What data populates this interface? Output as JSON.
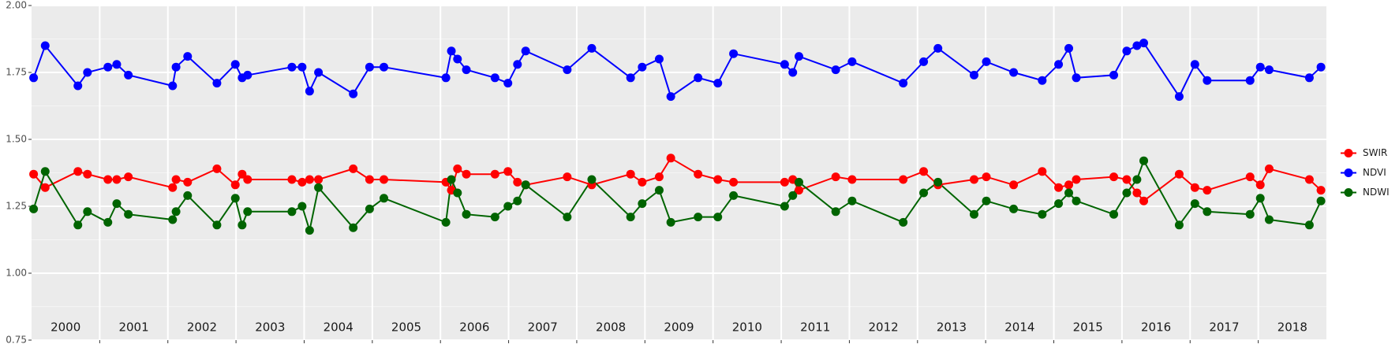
{
  "chart_data": {
    "type": "line",
    "x": [
      2000.03,
      2000.2,
      2000.68,
      2000.82,
      2001.12,
      2001.25,
      2001.42,
      2002.07,
      2002.12,
      2002.29,
      2002.72,
      2002.99,
      2003.09,
      2003.17,
      2003.82,
      2003.97,
      2004.08,
      2004.21,
      2004.72,
      2004.96,
      2005.17,
      2006.08,
      2006.16,
      2006.25,
      2006.38,
      2006.8,
      2006.99,
      2007.13,
      2007.25,
      2007.86,
      2008.22,
      2008.79,
      2008.96,
      2009.21,
      2009.38,
      2009.78,
      2010.07,
      2010.3,
      2011.05,
      2011.17,
      2011.26,
      2011.8,
      2012.04,
      2012.79,
      2013.09,
      2013.3,
      2013.83,
      2014.01,
      2014.41,
      2014.83,
      2015.07,
      2015.22,
      2015.33,
      2015.88,
      2016.07,
      2016.22,
      2016.32,
      2016.84,
      2017.07,
      2017.25,
      2017.88,
      2018.03,
      2018.16,
      2018.75,
      2018.92
    ],
    "series": [
      {
        "name": "SWIR",
        "color": "#ff0000",
        "values": [
          1.37,
          1.32,
          1.38,
          1.37,
          1.35,
          1.35,
          1.36,
          1.32,
          1.35,
          1.34,
          1.39,
          1.33,
          1.37,
          1.35,
          1.35,
          1.34,
          1.35,
          1.35,
          1.39,
          1.35,
          1.35,
          1.34,
          1.31,
          1.39,
          1.37,
          1.37,
          1.38,
          1.34,
          1.33,
          1.36,
          1.33,
          1.37,
          1.34,
          1.36,
          1.43,
          1.37,
          1.35,
          1.34,
          1.34,
          1.35,
          1.31,
          1.36,
          1.35,
          1.35,
          1.38,
          1.33,
          1.35,
          1.36,
          1.33,
          1.38,
          1.32,
          1.33,
          1.35,
          1.36,
          1.35,
          1.3,
          1.27,
          1.37,
          1.32,
          1.31,
          1.36,
          1.33,
          1.39,
          1.35,
          1.31
        ]
      },
      {
        "name": "NDVI",
        "color": "#0000ff",
        "values": [
          1.73,
          1.85,
          1.7,
          1.75,
          1.77,
          1.78,
          1.74,
          1.7,
          1.77,
          1.81,
          1.71,
          1.78,
          1.73,
          1.74,
          1.77,
          1.77,
          1.68,
          1.75,
          1.67,
          1.77,
          1.77,
          1.73,
          1.83,
          1.8,
          1.76,
          1.73,
          1.71,
          1.78,
          1.83,
          1.76,
          1.84,
          1.73,
          1.77,
          1.8,
          1.66,
          1.73,
          1.71,
          1.82,
          1.78,
          1.75,
          1.81,
          1.76,
          1.79,
          1.71,
          1.79,
          1.84,
          1.74,
          1.79,
          1.75,
          1.72,
          1.78,
          1.84,
          1.73,
          1.74,
          1.83,
          1.85,
          1.86,
          1.66,
          1.78,
          1.72,
          1.72,
          1.77,
          1.76,
          1.73,
          1.77
        ]
      },
      {
        "name": "NDWI",
        "color": "#006400",
        "values": [
          1.24,
          1.38,
          1.18,
          1.23,
          1.19,
          1.26,
          1.22,
          1.2,
          1.23,
          1.29,
          1.18,
          1.28,
          1.18,
          1.23,
          1.23,
          1.25,
          1.16,
          1.32,
          1.17,
          1.24,
          1.28,
          1.19,
          1.35,
          1.3,
          1.22,
          1.21,
          1.25,
          1.27,
          1.33,
          1.21,
          1.35,
          1.21,
          1.26,
          1.31,
          1.19,
          1.21,
          1.21,
          1.29,
          1.25,
          1.29,
          1.34,
          1.23,
          1.27,
          1.19,
          1.3,
          1.34,
          1.22,
          1.27,
          1.24,
          1.22,
          1.26,
          1.3,
          1.27,
          1.22,
          1.3,
          1.35,
          1.42,
          1.18,
          1.26,
          1.23,
          1.22,
          1.28,
          1.2,
          1.18,
          1.27
        ]
      }
    ],
    "xlim": [
      2000,
      2019
    ],
    "ylim": [
      0.75,
      2.0
    ],
    "yticks": [
      {
        "value": 0.75,
        "label": "0.75"
      },
      {
        "value": 1.0,
        "label": "1.00"
      },
      {
        "value": 1.25,
        "label": "1.25"
      },
      {
        "value": 1.5,
        "label": "1.50"
      },
      {
        "value": 1.75,
        "label": "1.75"
      },
      {
        "value": 2.0,
        "label": "2.00"
      }
    ],
    "year_labels": [
      2000,
      2001,
      2002,
      2003,
      2004,
      2005,
      2006,
      2007,
      2008,
      2009,
      2010,
      2011,
      2012,
      2013,
      2014,
      2015,
      2016,
      2017,
      2018
    ],
    "grid": true,
    "legend": "right"
  }
}
